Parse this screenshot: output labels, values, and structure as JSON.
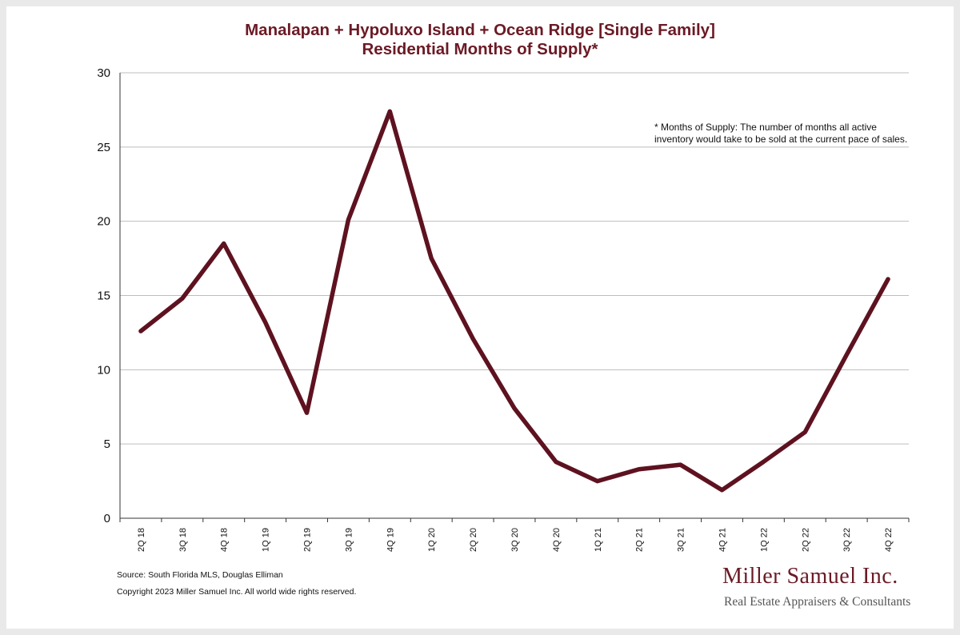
{
  "chart_data": {
    "type": "line",
    "title": "Manalapan + Hypoluxo Island + Ocean Ridge [Single Family]",
    "subtitle": "Residential Months of Supply*",
    "categories": [
      "2Q 18",
      "3Q 18",
      "4Q 18",
      "1Q 19",
      "2Q 19",
      "3Q 19",
      "4Q 19",
      "1Q 20",
      "2Q 20",
      "3Q 20",
      "4Q 20",
      "1Q 21",
      "2Q 21",
      "3Q 21",
      "4Q 21",
      "1Q 22",
      "2Q 22",
      "3Q 22",
      "4Q 22"
    ],
    "series": [
      {
        "values": [
          12.6,
          14.8,
          18.5,
          13.2,
          7.1,
          20.1,
          27.4,
          17.5,
          12.1,
          7.4,
          3.8,
          2.5,
          3.3,
          3.6,
          1.9,
          3.8,
          5.8,
          11.0,
          16.1
        ]
      }
    ],
    "ylim": [
      0,
      30
    ],
    "yticks": [
      0,
      5,
      10,
      15,
      20,
      25,
      30
    ],
    "grid": true,
    "xlabel": "",
    "ylabel": "",
    "annotation_lines": [
      "* Months of Supply: The number of months all active",
      "inventory would take to be sold at the current pace of sales."
    ]
  },
  "footer": {
    "source": "Source: South Florida MLS, Douglas Elliman",
    "copyright": "Copyright 2023 Miller Samuel Inc.  All world wide rights reserved."
  },
  "logo": {
    "name": "Miller Samuel Inc.",
    "tagline": "Real Estate Appraisers & Consultants"
  },
  "colors": {
    "line": "#5e1220",
    "title": "#6b1a25",
    "grid": "#bdbdbd"
  }
}
